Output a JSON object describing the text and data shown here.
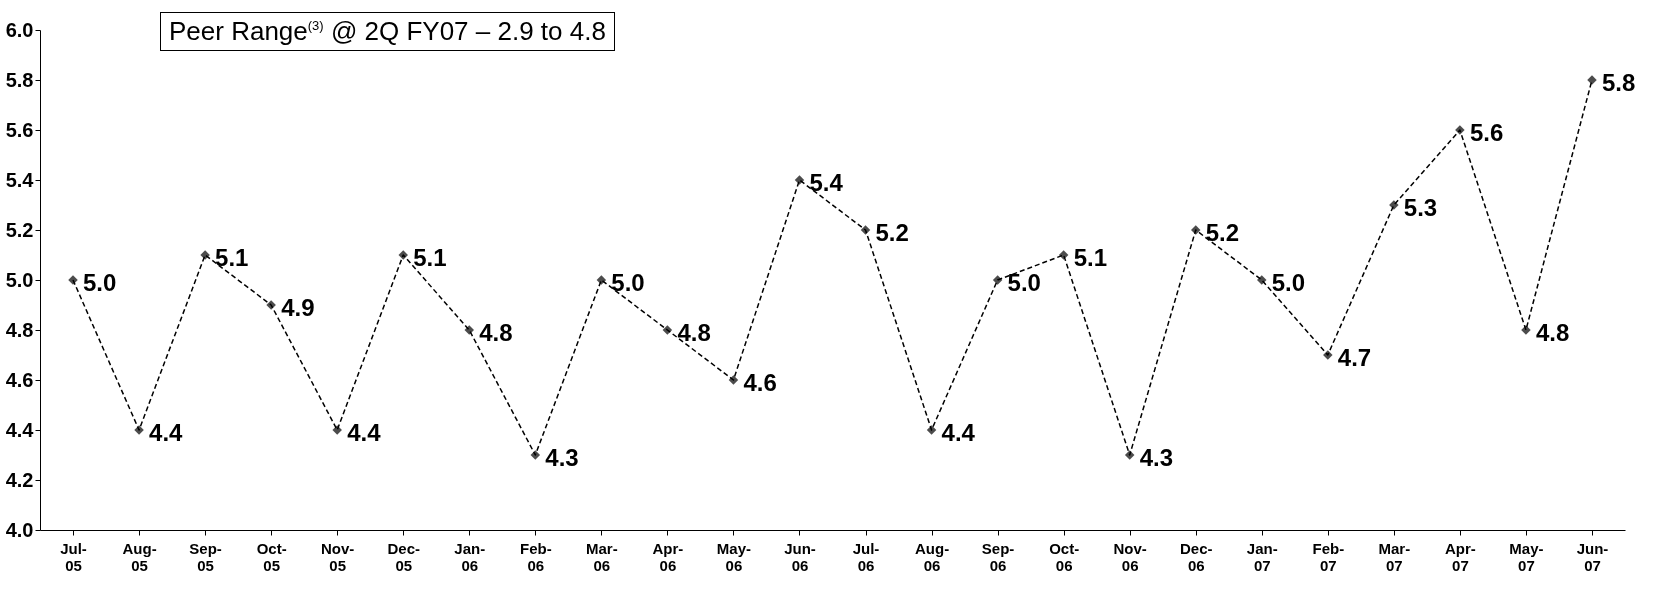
{
  "chart_data": {
    "type": "line",
    "annotations": [
      "Peer Range$^{(3)}$ @ 2Q FY07 – 2.9 to 4.8"
    ],
    "categories": [
      "Jul-05",
      "Aug-05",
      "Sep-05",
      "Oct-05",
      "Nov-05",
      "Dec-05",
      "Jan-06",
      "Feb-06",
      "Mar-06",
      "Apr-06",
      "May-06",
      "Jun-06",
      "Jul-06",
      "Aug-06",
      "Sep-06",
      "Oct-06",
      "Nov-06",
      "Dec-06",
      "Jan-07",
      "Feb-07",
      "Mar-07",
      "Apr-07",
      "May-07",
      "Jun-07"
    ],
    "series": [
      {
        "color": "#000000",
        "values": [
          5.0,
          4.4,
          5.1,
          4.9,
          4.4,
          5.1,
          4.8,
          4.3,
          5.0,
          4.8,
          4.6,
          5.4,
          5.2,
          4.4,
          5.0,
          5.1,
          4.3,
          5.2,
          5.0,
          4.7,
          5.3,
          5.6,
          4.8,
          5.8
        ],
        "value_labels": [
          "5.0",
          "4.4",
          "5.1",
          "4.9",
          "4.4",
          "5.1",
          "4.8",
          "4.3",
          "5.0",
          "4.8",
          "4.6",
          "5.4",
          "5.2",
          "4.4",
          "5.0",
          "5.1",
          "4.3",
          "5.2",
          "5.0",
          "4.7",
          "5.3",
          "5.6",
          "4.8",
          "5.8"
        ]
      }
    ],
    "ylim": [
      4.0,
      6.0
    ],
    "yticks": [
      {
        "value": 4.0,
        "label": "4.0"
      },
      {
        "value": 4.2,
        "label": "4.2"
      },
      {
        "value": 4.4,
        "label": "4.4"
      },
      {
        "value": 4.6,
        "label": "4.6"
      },
      {
        "value": 4.8,
        "label": "4.8"
      },
      {
        "value": 5.0,
        "label": "5.0"
      },
      {
        "value": 5.2,
        "label": "5.2"
      },
      {
        "value": 5.4,
        "label": "5.4"
      },
      {
        "value": 5.6,
        "label": "5.6"
      },
      {
        "value": 5.8,
        "label": "5.8"
      },
      {
        "value": 6.0,
        "label": "6.0"
      }
    ],
    "grid": false,
    "marker": "diamond",
    "line_style": "dashed"
  }
}
